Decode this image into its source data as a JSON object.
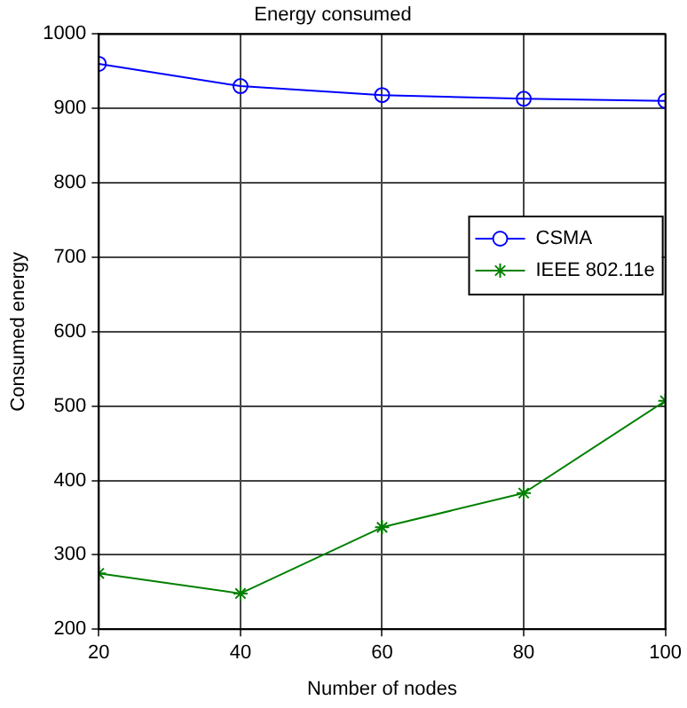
{
  "chart_data": {
    "type": "line",
    "title": "Energy consumed",
    "xlabel": "Number of nodes",
    "ylabel": "Consumed energy",
    "x": [
      20,
      40,
      60,
      80,
      100
    ],
    "series": [
      {
        "name": "CSMA",
        "color": "#0000ff",
        "marker": "circle",
        "values": [
          960,
          930,
          918,
          913,
          910
        ]
      },
      {
        "name": "IEEE 802.11e",
        "color": "#008000",
        "marker": "cross",
        "values": [
          275,
          248,
          337,
          383,
          507
        ]
      }
    ],
    "xlim": [
      20,
      100
    ],
    "xticks": [
      20,
      40,
      60,
      80,
      100
    ],
    "ylim": [
      200,
      1000
    ],
    "yticks": [
      200,
      300,
      400,
      500,
      600,
      700,
      800,
      900,
      1000
    ],
    "grid": true,
    "legend": "top right"
  }
}
